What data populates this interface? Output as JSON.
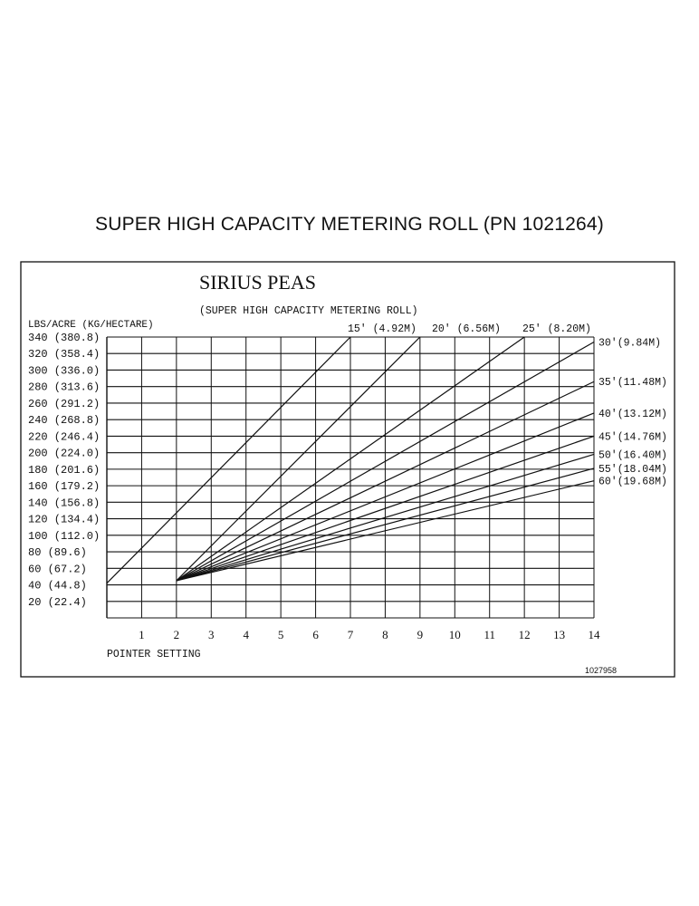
{
  "page": {
    "title": "SUPER HIGH CAPACITY METERING ROLL  (PN  1021264)"
  },
  "chart_data": {
    "type": "line",
    "title": "SIRIUS PEAS",
    "subtitle": "(SUPER HIGH CAPACITY METERING ROLL)",
    "ylabel": "LBS/ACRE (KG/HECTARE)",
    "xlabel": "POINTER SETTING",
    "doc_number": "1027958",
    "x_ticks": [
      "1",
      "2",
      "3",
      "4",
      "5",
      "6",
      "7",
      "8",
      "9",
      "10",
      "11",
      "12",
      "13",
      "14"
    ],
    "y_ticks": [
      {
        "value": 340,
        "label": "340 (380.8)"
      },
      {
        "value": 320,
        "label": "320 (358.4)"
      },
      {
        "value": 300,
        "label": "300 (336.0)"
      },
      {
        "value": 280,
        "label": "280 (313.6)"
      },
      {
        "value": 260,
        "label": "260 (291.2)"
      },
      {
        "value": 240,
        "label": "240 (268.8)"
      },
      {
        "value": 220,
        "label": "220 (246.4)"
      },
      {
        "value": 200,
        "label": "200 (224.0)"
      },
      {
        "value": 180,
        "label": "180 (201.6)"
      },
      {
        "value": 160,
        "label": "160 (179.2)"
      },
      {
        "value": 140,
        "label": "140 (156.8)"
      },
      {
        "value": 120,
        "label": "120 (134.4)"
      },
      {
        "value": 100,
        "label": "100 (112.0)"
      },
      {
        "value": 80,
        "label": "80 (89.6)"
      },
      {
        "value": 60,
        "label": "60 (67.2)"
      },
      {
        "value": 40,
        "label": "40 (44.8)"
      },
      {
        "value": 20,
        "label": "20 (22.4)"
      }
    ],
    "xlim": [
      0,
      14
    ],
    "ylim": [
      0,
      340
    ],
    "grid": true,
    "series": [
      {
        "name": "15' (4.92M)",
        "label_position": "top",
        "points": [
          [
            0,
            42
          ],
          [
            7,
            340
          ]
        ]
      },
      {
        "name": "20' (6.56M)",
        "label_position": "top",
        "points": [
          [
            2,
            45
          ],
          [
            9,
            340
          ]
        ]
      },
      {
        "name": "25' (8.20M)",
        "label_position": "top",
        "points": [
          [
            2,
            45
          ],
          [
            12,
            340
          ]
        ]
      },
      {
        "name": "30'(9.84M)",
        "label_position": "right",
        "points": [
          [
            2,
            45
          ],
          [
            14,
            334
          ]
        ]
      },
      {
        "name": "35'(11.48M)",
        "label_position": "right",
        "points": [
          [
            2,
            45
          ],
          [
            14,
            286
          ]
        ]
      },
      {
        "name": "40'(13.12M)",
        "label_position": "right",
        "points": [
          [
            2,
            45
          ],
          [
            14,
            248
          ]
        ]
      },
      {
        "name": "45'(14.76M)",
        "label_position": "right",
        "points": [
          [
            2,
            45
          ],
          [
            14,
            220
          ]
        ]
      },
      {
        "name": "50'(16.40M)",
        "label_position": "right",
        "points": [
          [
            2,
            45
          ],
          [
            14,
            198
          ]
        ]
      },
      {
        "name": "55'(18.04M)",
        "label_position": "right",
        "points": [
          [
            2,
            45
          ],
          [
            14,
            181
          ]
        ]
      },
      {
        "name": "60'(19.68M)",
        "label_position": "right",
        "points": [
          [
            2,
            45
          ],
          [
            14,
            166
          ]
        ]
      }
    ]
  }
}
